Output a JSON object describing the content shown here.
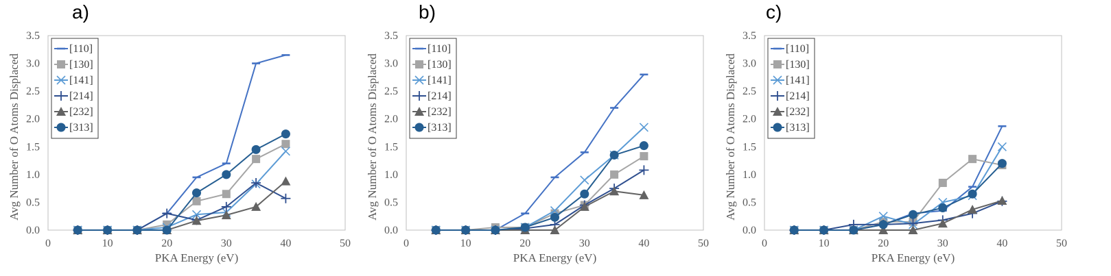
{
  "series_styles": {
    "[110]": {
      "color": "#4472C4",
      "marker": "dash"
    },
    "[130]": {
      "color": "#A5A5A5",
      "marker": "square"
    },
    "[141]": {
      "color": "#5B9BD5",
      "marker": "x"
    },
    "[214]": {
      "color": "#2F4F8F",
      "marker": "plus"
    },
    "[232]": {
      "color": "#636363",
      "marker": "triangle"
    },
    "[313]": {
      "color": "#255E91",
      "marker": "circle"
    }
  },
  "chart_data": [
    {
      "panel_label": "a)",
      "type": "line",
      "xlabel": "PKA Energy (eV)",
      "ylabel": "Avg Number of O Atoms Displaced",
      "xlim": [
        0,
        50
      ],
      "ylim": [
        0,
        3.5
      ],
      "xticks": [
        "0",
        "10",
        "20",
        "30",
        "40",
        "50"
      ],
      "yticks": [
        "0.0",
        "0.5",
        "1.0",
        "1.5",
        "2.0",
        "2.5",
        "3.0",
        "3.5"
      ],
      "grid": false,
      "legend": "top-left",
      "x": [
        5,
        10,
        15,
        20,
        25,
        30,
        35,
        40
      ],
      "series": [
        {
          "name": "[110]",
          "values": [
            0,
            0,
            0,
            0.3,
            0.95,
            1.2,
            3.0,
            3.15
          ]
        },
        {
          "name": "[130]",
          "values": [
            0,
            0,
            0,
            0.1,
            0.52,
            0.65,
            1.28,
            1.55
          ]
        },
        {
          "name": "[141]",
          "values": [
            0,
            0,
            0,
            0.05,
            0.28,
            0.32,
            0.83,
            1.42
          ]
        },
        {
          "name": "[214]",
          "values": [
            0,
            0,
            0,
            0.3,
            0.18,
            0.42,
            0.85,
            0.57
          ]
        },
        {
          "name": "[232]",
          "values": [
            0,
            0,
            0,
            0,
            0.17,
            0.27,
            0.42,
            0.88
          ]
        },
        {
          "name": "[313]",
          "values": [
            0,
            0,
            0,
            0,
            0.67,
            1.0,
            1.45,
            1.73
          ]
        }
      ]
    },
    {
      "panel_label": "b)",
      "type": "line",
      "xlabel": "PKA Energy (eV)",
      "ylabel": "Avg Number of O Atoms Displaced",
      "xlim": [
        0,
        50
      ],
      "ylim": [
        0,
        3.5
      ],
      "xticks": [
        "0",
        "10",
        "20",
        "30",
        "40",
        "50"
      ],
      "yticks": [
        "0.0",
        "0.5",
        "1.0",
        "1.5",
        "2.0",
        "2.5",
        "3.0",
        "3.5"
      ],
      "grid": false,
      "legend": "top-left",
      "x": [
        5,
        10,
        15,
        20,
        25,
        30,
        35,
        40
      ],
      "series": [
        {
          "name": "[110]",
          "values": [
            0,
            0,
            0,
            0.3,
            0.95,
            1.4,
            2.2,
            2.8
          ]
        },
        {
          "name": "[130]",
          "values": [
            0,
            0,
            0.05,
            0.05,
            0.3,
            0.45,
            1.0,
            1.33
          ]
        },
        {
          "name": "[141]",
          "values": [
            0,
            0,
            0,
            0.05,
            0.35,
            0.9,
            1.35,
            1.85
          ]
        },
        {
          "name": "[214]",
          "values": [
            0,
            0,
            0,
            0.03,
            0.1,
            0.45,
            0.75,
            1.08
          ]
        },
        {
          "name": "[232]",
          "values": [
            0,
            0,
            0,
            0,
            0,
            0.42,
            0.7,
            0.63
          ]
        },
        {
          "name": "[313]",
          "values": [
            0,
            0,
            0,
            0.05,
            0.23,
            0.65,
            1.35,
            1.52
          ]
        }
      ]
    },
    {
      "panel_label": "c)",
      "type": "line",
      "xlabel": "PKA Energy (eV)",
      "ylabel": "Avg Number of O Atoms Displaced",
      "xlim": [
        0,
        50
      ],
      "ylim": [
        0,
        3.5
      ],
      "xticks": [
        "0",
        "10",
        "20",
        "30",
        "40",
        "50"
      ],
      "yticks": [
        "0.0",
        "0.5",
        "1.0",
        "1.5",
        "2.0",
        "2.5",
        "3.0",
        "3.5"
      ],
      "grid": false,
      "legend": "top-left",
      "x": [
        5,
        10,
        15,
        20,
        25,
        30,
        35,
        40
      ],
      "series": [
        {
          "name": "[110]",
          "values": [
            0,
            0,
            0,
            0.1,
            0.3,
            0.35,
            0.78,
            1.87
          ]
        },
        {
          "name": "[130]",
          "values": [
            0,
            0,
            0,
            0.15,
            0.15,
            0.85,
            1.28,
            1.17
          ]
        },
        {
          "name": "[141]",
          "values": [
            0,
            0,
            0,
            0.25,
            0.1,
            0.5,
            0.62,
            1.5
          ]
        },
        {
          "name": "[214]",
          "values": [
            0,
            0,
            0.1,
            0.1,
            0.12,
            0.18,
            0.3,
            0.52
          ]
        },
        {
          "name": "[232]",
          "values": [
            0,
            0,
            0,
            0,
            0,
            0.12,
            0.37,
            0.53
          ]
        },
        {
          "name": "[313]",
          "values": [
            0,
            0,
            0,
            0.1,
            0.28,
            0.4,
            0.65,
            1.2
          ]
        }
      ]
    }
  ]
}
